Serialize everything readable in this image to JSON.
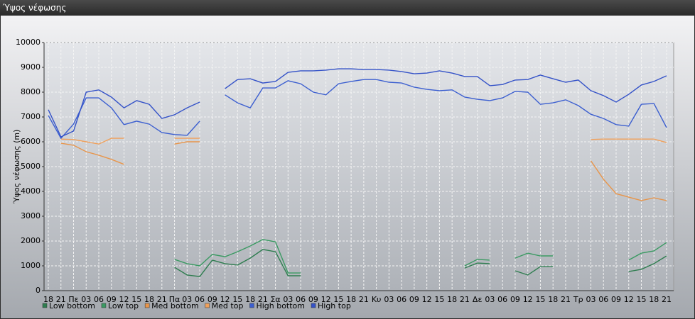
{
  "window_title": "Ύψος νέφωσης",
  "chart_data": {
    "type": "line",
    "y_label": "Ύψος νέφωσης (m)",
    "categories": [
      "18",
      "21",
      "Πε",
      "03",
      "06",
      "09",
      "12",
      "15",
      "18",
      "21",
      "Πα",
      "03",
      "06",
      "09",
      "12",
      "15",
      "18",
      "21",
      "Σα",
      "03",
      "06",
      "09",
      "12",
      "15",
      "18",
      "21",
      "Κυ",
      "03",
      "06",
      "09",
      "12",
      "15",
      "18",
      "21",
      "Δε",
      "03",
      "06",
      "09",
      "12",
      "15",
      "18",
      "21",
      "Τρ",
      "03",
      "06",
      "09",
      "12",
      "15",
      "18",
      "21"
    ],
    "ylim": [
      0,
      10000
    ],
    "yticks": [
      0,
      1000,
      2000,
      3000,
      4000,
      5000,
      6000,
      7000,
      8000,
      9000,
      10000
    ],
    "grid": true,
    "series": [
      {
        "name": "Low bottom",
        "color": "#2e7d4f",
        "values": [
          null,
          null,
          null,
          null,
          null,
          null,
          null,
          null,
          null,
          null,
          940,
          630,
          570,
          1230,
          1090,
          1030,
          1310,
          1660,
          1570,
          600,
          600,
          null,
          null,
          null,
          null,
          null,
          null,
          null,
          null,
          null,
          null,
          null,
          null,
          910,
          1110,
          1090,
          null,
          800,
          630,
          970,
          970,
          null,
          null,
          null,
          null,
          null,
          770,
          860,
          1090,
          1400
        ]
      },
      {
        "name": "Low top",
        "color": "#3a9a62",
        "values": [
          null,
          null,
          null,
          null,
          null,
          null,
          null,
          null,
          null,
          null,
          1260,
          1090,
          1000,
          1460,
          1370,
          1570,
          1800,
          2060,
          1970,
          710,
          710,
          null,
          null,
          null,
          null,
          null,
          null,
          null,
          null,
          null,
          null,
          null,
          null,
          1000,
          1260,
          1230,
          null,
          1310,
          1510,
          1400,
          1400,
          null,
          null,
          null,
          null,
          null,
          1230,
          1510,
          1600,
          1940
        ]
      },
      {
        "name": "Med bottom",
        "color": "#e8954a",
        "values": [
          null,
          5940,
          5860,
          5600,
          5460,
          5290,
          5090,
          null,
          null,
          null,
          5910,
          6000,
          6000,
          null,
          null,
          null,
          null,
          null,
          null,
          null,
          null,
          null,
          null,
          null,
          null,
          null,
          null,
          null,
          null,
          null,
          null,
          null,
          null,
          null,
          null,
          null,
          null,
          null,
          null,
          null,
          null,
          null,
          null,
          5230,
          4490,
          3910,
          3770,
          3630,
          3740,
          3630
        ]
      },
      {
        "name": "Med top",
        "color": "#f0a05a",
        "values": [
          null,
          6110,
          6090,
          6000,
          5910,
          6140,
          6140,
          null,
          null,
          null,
          6140,
          6140,
          6140,
          null,
          null,
          null,
          null,
          null,
          null,
          null,
          null,
          null,
          null,
          null,
          null,
          null,
          null,
          null,
          null,
          null,
          null,
          null,
          null,
          null,
          null,
          null,
          null,
          null,
          null,
          null,
          null,
          null,
          null,
          6090,
          6110,
          6110,
          6110,
          6110,
          6110,
          5970
        ]
      },
      {
        "name": "High bottom",
        "color": "#3c5fd0",
        "values": [
          7060,
          6140,
          6710,
          7770,
          7770,
          7370,
          6690,
          6830,
          6710,
          6370,
          6290,
          6260,
          6830,
          null,
          7890,
          7570,
          7370,
          8170,
          8170,
          8460,
          8340,
          8000,
          7890,
          8340,
          8430,
          8510,
          8510,
          8400,
          8370,
          8200,
          8110,
          8060,
          8090,
          7800,
          7710,
          7660,
          7770,
          8030,
          8000,
          7510,
          7570,
          7690,
          7460,
          7110,
          6940,
          6690,
          6630,
          7510,
          7540,
          6570
        ]
      },
      {
        "name": "High top",
        "color": "#3452c8",
        "values": [
          7290,
          6200,
          6430,
          8000,
          8090,
          7800,
          7370,
          7660,
          7510,
          6940,
          7090,
          7370,
          7600,
          null,
          8140,
          8510,
          8540,
          8370,
          8430,
          8800,
          8860,
          8860,
          8890,
          8940,
          8940,
          8910,
          8910,
          8890,
          8830,
          8740,
          8770,
          8860,
          8770,
          8630,
          8630,
          8260,
          8310,
          8490,
          8510,
          8690,
          8540,
          8400,
          8490,
          8060,
          7860,
          7600,
          7910,
          8290,
          8430,
          8660
        ]
      }
    ]
  }
}
